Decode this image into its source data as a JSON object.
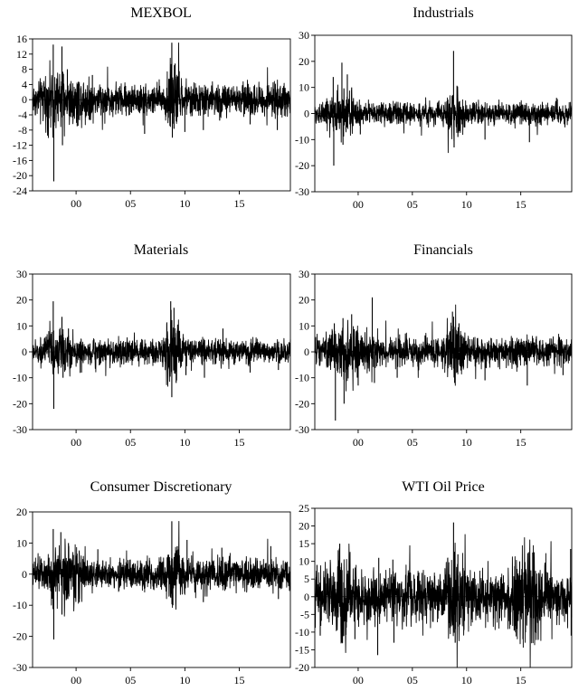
{
  "figure": {
    "background": "#ffffff",
    "line_color": "#000000"
  },
  "chart_data": [
    {
      "type": "line",
      "title": "MEXBOL",
      "ylim": [
        -24,
        16
      ],
      "yticks": [
        16,
        12,
        8,
        4,
        0,
        -4,
        -8,
        -12,
        -16,
        -20,
        -24
      ],
      "ytick_labels": [
        "16",
        "12",
        "8",
        "4",
        "0",
        "-4",
        "-8",
        "-12",
        "-16",
        "-20",
        "-24"
      ],
      "xlim": [
        1996.0,
        2019.7
      ],
      "xticks": [
        2000,
        2005,
        2010,
        2015
      ],
      "xtick_labels": [
        "00",
        "05",
        "10",
        "15"
      ],
      "base_amplitude": 2.0,
      "spikes": [
        [
          1997.9,
          14.5
        ],
        [
          1997.95,
          -21.5
        ],
        [
          1998.7,
          14.0
        ],
        [
          1998.75,
          -12.0
        ],
        [
          1999.2,
          8.0
        ],
        [
          2000.1,
          -7.0
        ],
        [
          2001.5,
          6.5
        ],
        [
          2006.3,
          -9.0
        ],
        [
          2008.8,
          15.0
        ],
        [
          2008.85,
          -10.0
        ],
        [
          2009.1,
          9.5
        ],
        [
          2010.0,
          -8.5
        ],
        [
          2011.7,
          -8.0
        ],
        [
          2013.2,
          -5.5
        ],
        [
          2016.0,
          -6.5
        ],
        [
          2018.5,
          -8.0
        ]
      ],
      "clusters": [
        [
          1998.2,
          1.3,
          1.1
        ],
        [
          2008.9,
          0.6,
          1.5
        ],
        [
          2000.5,
          1.2,
          0.5
        ]
      ],
      "grid": false
    },
    {
      "type": "line",
      "title": "Industrials",
      "ylim": [
        -30,
        30
      ],
      "yticks": [
        30,
        20,
        10,
        0,
        -10,
        -20,
        -30
      ],
      "ytick_labels": [
        "30",
        "20",
        "10",
        "0",
        "-10",
        "-20",
        "-30"
      ],
      "xlim": [
        1996.0,
        2019.7
      ],
      "xticks": [
        2000,
        2005,
        2010,
        2015
      ],
      "xtick_labels": [
        "00",
        "05",
        "10",
        "15"
      ],
      "base_amplitude": 2.0,
      "spikes": [
        [
          1997.7,
          14.0
        ],
        [
          1997.75,
          -20.0
        ],
        [
          1998.5,
          19.5
        ],
        [
          1998.6,
          -12.0
        ],
        [
          1999.0,
          15.0
        ],
        [
          1999.4,
          10.0
        ],
        [
          2000.2,
          -8.0
        ],
        [
          2008.8,
          24.0
        ],
        [
          2008.85,
          -13.0
        ],
        [
          2009.2,
          -9.0
        ],
        [
          2011.7,
          -10.0
        ],
        [
          2015.8,
          -11.0
        ],
        [
          2018.3,
          6.0
        ]
      ],
      "clusters": [
        [
          1998.6,
          1.2,
          1.5
        ],
        [
          2008.9,
          0.6,
          1.5
        ]
      ],
      "grid": false
    },
    {
      "type": "line",
      "title": "Materials",
      "ylim": [
        -30,
        30
      ],
      "yticks": [
        30,
        20,
        10,
        0,
        -10,
        -20,
        -30
      ],
      "ytick_labels": [
        "30",
        "20",
        "10",
        "0",
        "-10",
        "-20",
        "-30"
      ],
      "xlim": [
        1996.0,
        2019.7
      ],
      "xticks": [
        2000,
        2005,
        2010,
        2015
      ],
      "xtick_labels": [
        "00",
        "05",
        "10",
        "15"
      ],
      "base_amplitude": 2.3,
      "spikes": [
        [
          1997.9,
          19.5
        ],
        [
          1997.95,
          -22.0
        ],
        [
          1998.7,
          13.5
        ],
        [
          1998.8,
          -10.0
        ],
        [
          1999.3,
          9.0
        ],
        [
          2000.5,
          -8.0
        ],
        [
          2008.7,
          19.5
        ],
        [
          2008.8,
          -17.5
        ],
        [
          2009.0,
          17.0
        ],
        [
          2009.2,
          -12.0
        ],
        [
          2010.1,
          -9.0
        ],
        [
          2011.8,
          -10.0
        ],
        [
          2013.5,
          9.0
        ],
        [
          2016.0,
          -8.0
        ],
        [
          2018.6,
          -7.0
        ]
      ],
      "clusters": [
        [
          1998.4,
          1.0,
          1.0
        ],
        [
          2008.9,
          0.8,
          2.0
        ]
      ],
      "grid": false
    },
    {
      "type": "line",
      "title": "Financials",
      "ylim": [
        -30,
        30
      ],
      "yticks": [
        30,
        20,
        10,
        0,
        -10,
        -20,
        -30
      ],
      "ytick_labels": [
        "30",
        "20",
        "10",
        "0",
        "-10",
        "-20",
        "-30"
      ],
      "xlim": [
        1996.0,
        2019.7
      ],
      "xticks": [
        2000,
        2005,
        2010,
        2015
      ],
      "xtick_labels": [
        "00",
        "05",
        "10",
        "15"
      ],
      "base_amplitude": 2.6,
      "spikes": [
        [
          1997.8,
          11.0
        ],
        [
          1997.9,
          -26.5
        ],
        [
          1998.6,
          13.0
        ],
        [
          1998.7,
          -20.0
        ],
        [
          1999.4,
          14.5
        ],
        [
          2000.0,
          -13.0
        ],
        [
          2001.3,
          21.0
        ],
        [
          2001.5,
          -12.0
        ],
        [
          2003.6,
          -10.0
        ],
        [
          2008.7,
          15.5
        ],
        [
          2008.9,
          -12.0
        ],
        [
          2009.3,
          11.0
        ],
        [
          2011.7,
          -11.0
        ],
        [
          2015.6,
          -13.0
        ],
        [
          2018.9,
          -9.0
        ]
      ],
      "clusters": [
        [
          1999.0,
          1.5,
          1.3
        ],
        [
          2008.9,
          0.7,
          1.6
        ]
      ],
      "grid": false
    },
    {
      "type": "line",
      "title": "Consumer Discretionary",
      "ylim": [
        -30,
        20
      ],
      "yticks": [
        20,
        10,
        0,
        -10,
        -20,
        -30
      ],
      "ytick_labels": [
        "20",
        "10",
        "0",
        "-10",
        "-20",
        "-30"
      ],
      "xlim": [
        1996.0,
        2019.7
      ],
      "xticks": [
        2000,
        2005,
        2010,
        2015
      ],
      "xtick_labels": [
        "00",
        "05",
        "10",
        "15"
      ],
      "base_amplitude": 2.4,
      "spikes": [
        [
          1997.9,
          14.5
        ],
        [
          1997.95,
          -21.0
        ],
        [
          1998.6,
          13.5
        ],
        [
          1998.7,
          -13.0
        ],
        [
          1999.3,
          10.0
        ],
        [
          2000.3,
          -9.0
        ],
        [
          2002.0,
          8.0
        ],
        [
          2008.8,
          17.0
        ],
        [
          2008.9,
          -10.0
        ],
        [
          2009.3,
          9.0
        ],
        [
          2010.2,
          11.0
        ],
        [
          2011.7,
          -9.0
        ],
        [
          2013.4,
          8.5
        ],
        [
          2017.9,
          9.0
        ],
        [
          2018.6,
          -8.0
        ]
      ],
      "clusters": [
        [
          1998.9,
          1.5,
          1.2
        ],
        [
          2008.9,
          0.7,
          1.3
        ]
      ],
      "grid": false
    },
    {
      "type": "line",
      "title": "WTI Oil Price",
      "ylim": [
        -20,
        25
      ],
      "yticks": [
        25,
        20,
        15,
        10,
        5,
        0,
        -5,
        -10,
        -15,
        -20
      ],
      "ytick_labels": [
        "25",
        "20",
        "15",
        "10",
        "5",
        "0",
        "-5",
        "-10",
        "-15",
        "-20"
      ],
      "xlim": [
        1996.0,
        2019.7
      ],
      "xticks": [
        2000,
        2005,
        2010,
        2015
      ],
      "xtick_labels": [
        "00",
        "05",
        "10",
        "15"
      ],
      "base_amplitude": 3.4,
      "spikes": [
        [
          1996.2,
          9.0
        ],
        [
          1996.5,
          -11.0
        ],
        [
          1998.3,
          15.0
        ],
        [
          1998.5,
          -13.0
        ],
        [
          1999.7,
          -12.0
        ],
        [
          2001.8,
          -16.5
        ],
        [
          2001.9,
          11.0
        ],
        [
          2003.2,
          10.5
        ],
        [
          2003.3,
          -13.0
        ],
        [
          2008.8,
          21.0
        ],
        [
          2008.95,
          -13.0
        ],
        [
          2009.2,
          12.0
        ],
        [
          2014.9,
          10.0
        ],
        [
          2015.2,
          -12.0
        ],
        [
          2016.1,
          12.5
        ],
        [
          2016.3,
          -10.0
        ],
        [
          2019.6,
          13.5
        ],
        [
          2019.65,
          -11.0
        ]
      ],
      "clusters": [
        [
          2008.9,
          0.7,
          1.3
        ],
        [
          2015.5,
          1.2,
          1.4
        ],
        [
          1998.5,
          1.0,
          1.1
        ]
      ],
      "grid": false
    }
  ]
}
